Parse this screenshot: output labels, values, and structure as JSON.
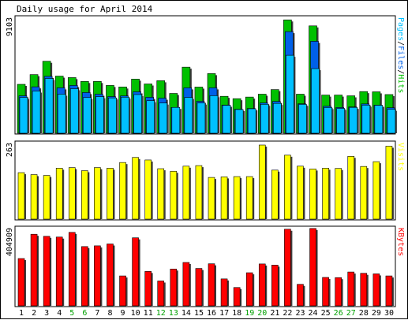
{
  "chart_data": {
    "type": "bar",
    "title": "Daily usage for April 2014",
    "categories": [
      "1",
      "2",
      "3",
      "4",
      "5",
      "6",
      "7",
      "8",
      "9",
      "10",
      "11",
      "12",
      "13",
      "14",
      "15",
      "16",
      "17",
      "18",
      "19",
      "20",
      "21",
      "22",
      "23",
      "24",
      "25",
      "26",
      "27",
      "28",
      "29",
      "30"
    ],
    "weekend_days": [
      "5",
      "6",
      "12",
      "13",
      "19",
      "20",
      "26",
      "27"
    ],
    "colors": {
      "hits": "#00c000",
      "files": "#0060e8",
      "pages": "#00c0ff",
      "visits": "#ffff00",
      "kbytes": "#ff0000",
      "weekday_label": "#000000",
      "weekend_label": "#00a000"
    },
    "panels": [
      {
        "name": "hits-files-pages",
        "max_label": "9103",
        "ylim": [
          0,
          9103
        ],
        "legend": [
          {
            "text": "Pages",
            "color": "#00c0ff"
          },
          {
            "text": "/",
            "color": "#000000"
          },
          {
            "text": "Files",
            "color": "#0060e8"
          },
          {
            "text": "/",
            "color": "#000000"
          },
          {
            "text": "Hits",
            "color": "#00c000"
          }
        ],
        "series": [
          {
            "name": "Hits",
            "color": "#00c000",
            "values": [
              3920,
              4700,
              5770,
              4580,
              4460,
              4150,
              4150,
              3830,
              3710,
              4340,
              3950,
              4210,
              3190,
              5300,
              3700,
              4780,
              2960,
              2770,
              2900,
              3130,
              3500,
              9090,
              3130,
              8610,
              3060,
              3060,
              3000,
              3340,
              3320,
              3100
            ]
          },
          {
            "name": "Files",
            "color": "#0060e8",
            "values": [
              3000,
              3720,
              4560,
              3640,
              3830,
              3260,
              3130,
              2940,
              2990,
              3320,
              2880,
              2810,
              2060,
              3640,
              2560,
              3640,
              2260,
              1920,
              1980,
              2430,
              2550,
              8150,
              2360,
              7370,
              2160,
              2060,
              2110,
              2350,
              2250,
              2040
            ]
          },
          {
            "name": "Pages",
            "color": "#00c0ff",
            "values": [
              2870,
              3380,
              4390,
              3130,
              3570,
              2860,
              2930,
              2830,
              2890,
              3100,
              2610,
              2420,
              2070,
              2870,
              2420,
              3010,
              2240,
              1900,
              1960,
              2320,
              2390,
              6250,
              2310,
              5180,
              2060,
              1990,
              2070,
              2250,
              2240,
              1920
            ]
          }
        ]
      },
      {
        "name": "visits",
        "max_label": "263",
        "ylim": [
          0,
          263
        ],
        "legend": [
          {
            "text": "Visits",
            "color": "#ffff00"
          }
        ],
        "series": [
          {
            "name": "Visits",
            "color": "#ffff00",
            "values": [
              165,
              158,
              155,
              181,
              183,
              172,
              183,
              181,
              201,
              219,
              210,
              179,
              170,
              188,
              190,
              148,
              150,
              151,
              151,
              263,
              174,
              227,
              188,
              178,
              181,
              180,
              223,
              187,
              204,
              259
            ]
          }
        ]
      },
      {
        "name": "kbytes",
        "max_label": "404909",
        "ylim": [
          0,
          404909
        ],
        "legend": [
          {
            "text": "KBytes",
            "color": "#ff0000"
          }
        ],
        "series": [
          {
            "name": "KBytes",
            "color": "#ff0000",
            "values": [
              253000,
              383000,
              372000,
              368000,
              393000,
              317000,
              321000,
              331000,
              160000,
              364000,
              184000,
              133000,
              197000,
              232000,
              200000,
              225000,
              144000,
              98000,
              177000,
              224000,
              218000,
              410000,
              115000,
              414000,
              152000,
              151000,
              181000,
              174000,
              171000,
              160000
            ]
          }
        ]
      }
    ]
  }
}
